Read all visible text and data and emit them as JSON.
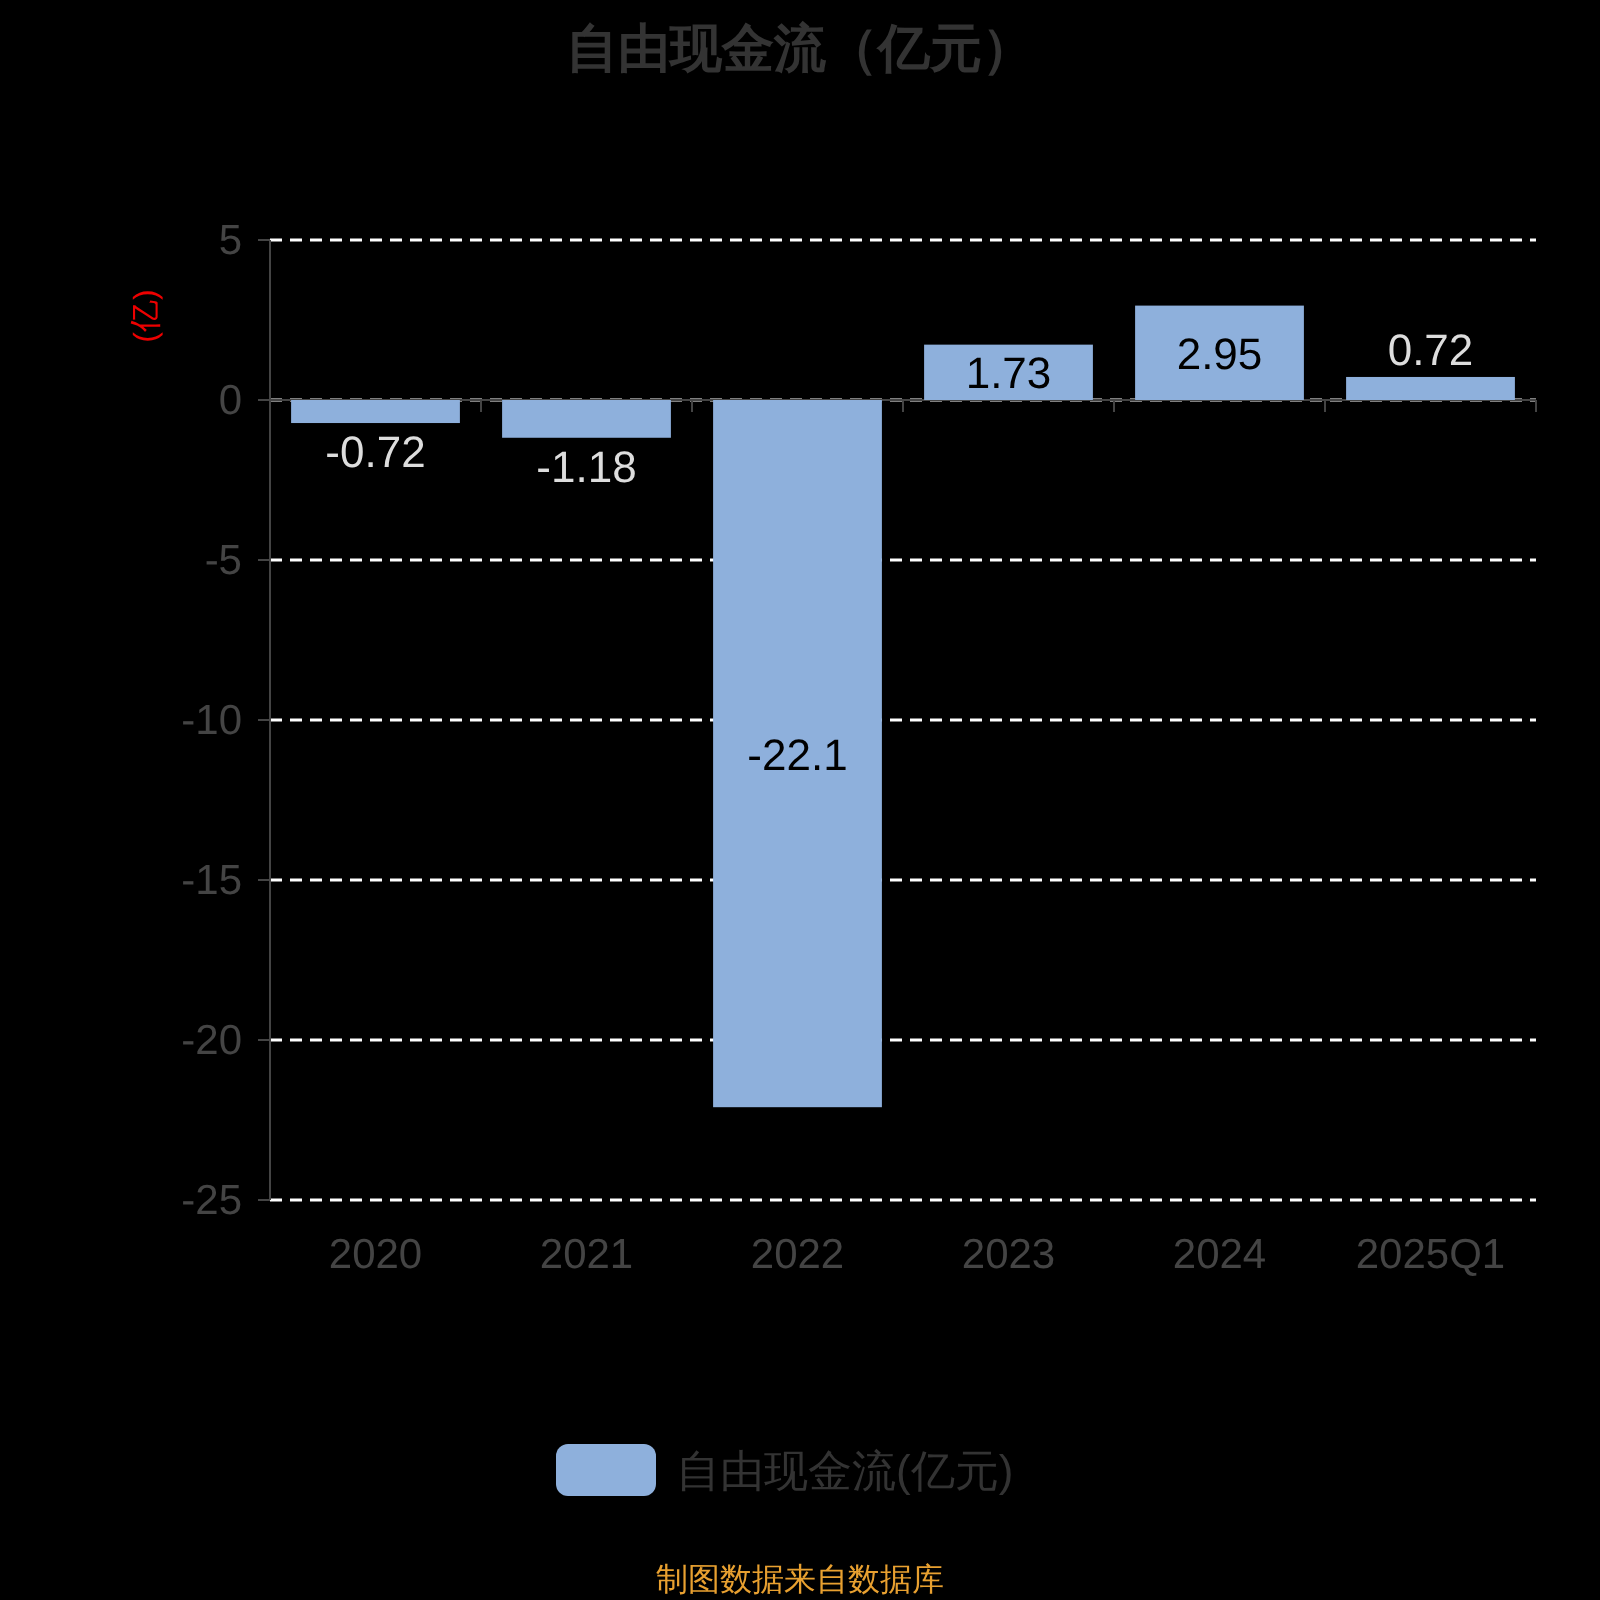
{
  "chart_data": {
    "type": "bar",
    "title": "自由现金流（亿元）",
    "ylabel": "(亿)",
    "categories": [
      "2020",
      "2021",
      "2022",
      "2023",
      "2024",
      "2025Q1"
    ],
    "series": [
      {
        "name": "自由现金流(亿元)",
        "color": "#8eb0dc",
        "values": [
          -0.72,
          -1.18,
          -22.1,
          1.73,
          2.95,
          0.72
        ]
      }
    ],
    "ylim": [
      -25,
      5
    ],
    "yticks": [
      -25,
      -20,
      -15,
      -10,
      -5,
      0,
      5
    ],
    "grid": "y",
    "legend": "bottom",
    "data_labels": true,
    "annotations": [
      "制图数据来自数据库"
    ]
  }
}
